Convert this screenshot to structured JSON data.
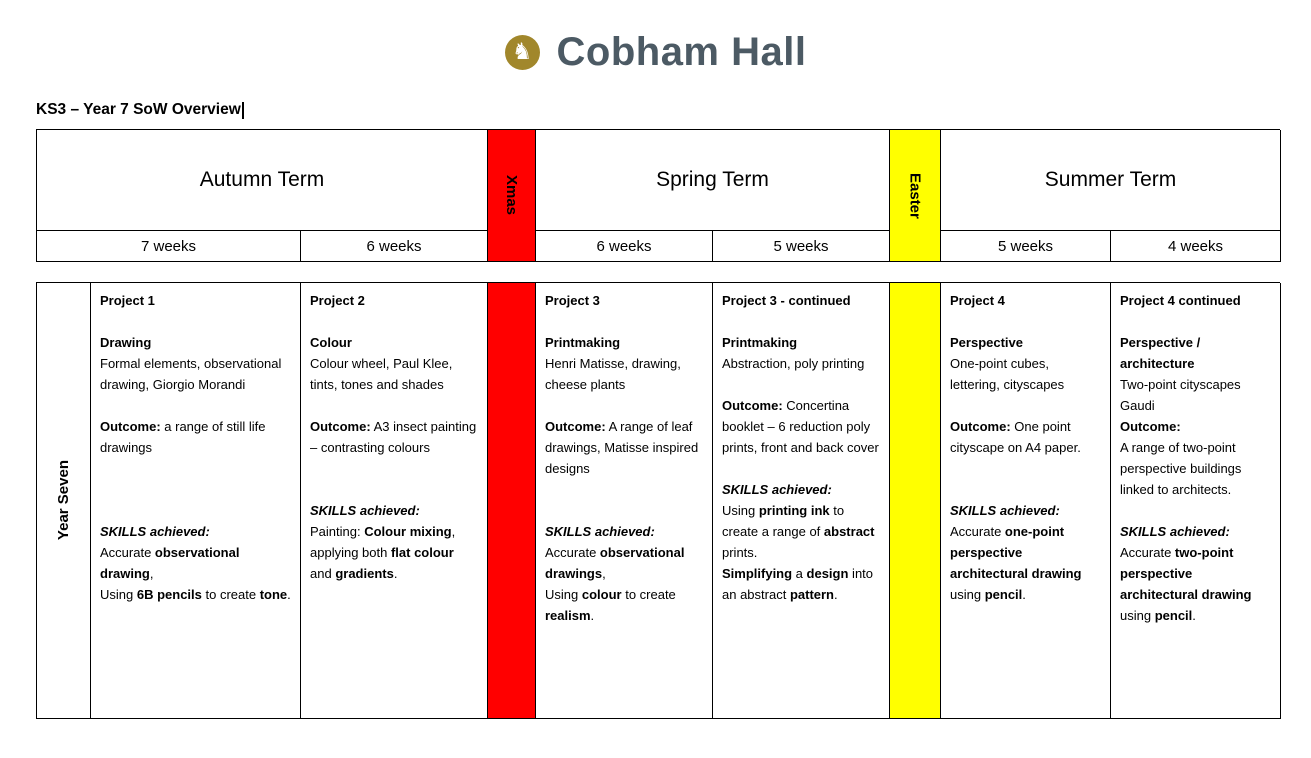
{
  "header": {
    "school_name": "Cobham Hall",
    "logo_icon": "horse-crest-icon",
    "logo_glyph": "♞"
  },
  "document": {
    "title": "KS3 – Year 7 SoW Overview"
  },
  "colors": {
    "xmas_red": "#FF0000",
    "easter_yellow": "#FFFF00",
    "logo_gold": "#A1872B",
    "school_name_gray": "#4C5A64"
  },
  "terms_table": {
    "headers": {
      "autumn": "Autumn Term",
      "xmas": "Xmas",
      "spring": "Spring Term",
      "easter": "Easter",
      "summer": "Summer Term"
    },
    "weeks": [
      "7 weeks",
      "6 weeks",
      "6 weeks",
      "5 weeks",
      "5 weeks",
      "4 weeks"
    ]
  },
  "projects_table": {
    "row_label": "Year Seven",
    "projects": [
      {
        "name": "project-1",
        "paragraphs": [
          [
            [
              "Project 1",
              "b"
            ]
          ],
          [],
          [
            [
              "Drawing",
              "b"
            ]
          ],
          [
            [
              "Formal elements, observational drawing, Giorgio Morandi",
              ""
            ]
          ],
          [],
          [
            [
              "Outcome:",
              "b"
            ],
            [
              " a range of still life drawings",
              ""
            ]
          ],
          [],
          [],
          [],
          [
            [
              "SKILLS achieved:",
              "bi"
            ]
          ],
          [
            [
              "Accurate ",
              ""
            ],
            [
              "observational drawing",
              "b"
            ],
            [
              ",",
              ""
            ]
          ],
          [
            [
              "Using ",
              ""
            ],
            [
              "6B pencils",
              "b"
            ],
            [
              " to create ",
              ""
            ],
            [
              "tone",
              "b"
            ],
            [
              ".",
              ""
            ]
          ]
        ]
      },
      {
        "name": "project-2",
        "paragraphs": [
          [
            [
              "Project 2",
              "b"
            ]
          ],
          [],
          [
            [
              "Colour",
              "b"
            ]
          ],
          [
            [
              "Colour wheel, Paul Klee, tints, tones and shades",
              ""
            ]
          ],
          [],
          [
            [
              "Outcome:",
              "b"
            ],
            [
              " A3 insect painting – contrasting colours",
              ""
            ]
          ],
          [],
          [],
          [
            [
              "SKILLS achieved:",
              "bi"
            ]
          ],
          [
            [
              "Painting: ",
              ""
            ],
            [
              "Colour mixing",
              "b"
            ],
            [
              ", applying both ",
              ""
            ],
            [
              "flat colour",
              "b"
            ],
            [
              " and ",
              ""
            ],
            [
              "gradients",
              "b"
            ],
            [
              ".",
              ""
            ]
          ]
        ]
      },
      {
        "name": "project-3",
        "paragraphs": [
          [
            [
              "Project 3",
              "b"
            ]
          ],
          [],
          [
            [
              "Printmaking",
              "b"
            ]
          ],
          [
            [
              "Henri Matisse, drawing, cheese plants",
              ""
            ]
          ],
          [],
          [
            [
              "Outcome:",
              "b"
            ],
            [
              " A range of leaf drawings, Matisse inspired designs",
              ""
            ]
          ],
          [],
          [],
          [
            [
              "SKILLS achieved:",
              "bi"
            ]
          ],
          [
            [
              "Accurate ",
              ""
            ],
            [
              "observational drawings",
              "b"
            ],
            [
              ",",
              ""
            ]
          ],
          [
            [
              "Using ",
              ""
            ],
            [
              "colour",
              "b"
            ],
            [
              " to create ",
              ""
            ],
            [
              "realism",
              "b"
            ],
            [
              ".",
              ""
            ]
          ]
        ]
      },
      {
        "name": "project-3-continued",
        "paragraphs": [
          [
            [
              "Project 3 - continued",
              "b"
            ]
          ],
          [],
          [
            [
              "Printmaking",
              "b"
            ]
          ],
          [
            [
              "Abstraction, poly printing",
              ""
            ]
          ],
          [],
          [
            [
              "Outcome:",
              "b"
            ],
            [
              " Concertina booklet – 6 reduction poly prints, front and back cover",
              ""
            ]
          ],
          [],
          [
            [
              "SKILLS achieved:",
              "bi"
            ]
          ],
          [
            [
              "Using ",
              ""
            ],
            [
              "printing ink",
              "b"
            ],
            [
              " to create a range of ",
              ""
            ],
            [
              "abstract",
              "b"
            ],
            [
              " prints.",
              ""
            ]
          ],
          [
            [
              "Simplifying",
              "b"
            ],
            [
              " a ",
              ""
            ],
            [
              "design",
              "b"
            ],
            [
              " into an abstract ",
              ""
            ],
            [
              "pattern",
              "b"
            ],
            [
              ".",
              ""
            ]
          ]
        ]
      },
      {
        "name": "project-4",
        "paragraphs": [
          [
            [
              "Project 4",
              "b"
            ]
          ],
          [],
          [
            [
              "Perspective",
              "b"
            ]
          ],
          [
            [
              "One-point cubes, lettering, cityscapes",
              ""
            ]
          ],
          [],
          [
            [
              "Outcome:",
              "b"
            ],
            [
              "  One point cityscape on A4 paper.",
              ""
            ]
          ],
          [],
          [],
          [
            [
              "SKILLS achieved:",
              "bi"
            ]
          ],
          [
            [
              "Accurate ",
              ""
            ],
            [
              "one-point perspective architectural drawing",
              "b"
            ],
            [
              " using ",
              ""
            ],
            [
              "pencil",
              "b"
            ],
            [
              ".",
              ""
            ]
          ]
        ]
      },
      {
        "name": "project-4-continued",
        "paragraphs": [
          [
            [
              "Project 4 continued",
              "b"
            ]
          ],
          [],
          [
            [
              "Perspective / architecture",
              "b"
            ]
          ],
          [
            [
              "Two-point cityscapes",
              ""
            ]
          ],
          [
            [
              "Gaudi",
              ""
            ]
          ],
          [
            [
              "Outcome:",
              "b"
            ]
          ],
          [
            [
              "A range of two-point perspective buildings linked to architects.",
              ""
            ]
          ],
          [],
          [
            [
              "SKILLS achieved:",
              "bi"
            ]
          ],
          [
            [
              "Accurate ",
              ""
            ],
            [
              "two-point perspective architectural drawing",
              "b"
            ],
            [
              " using ",
              ""
            ],
            [
              "pencil",
              "b"
            ],
            [
              ".",
              ""
            ]
          ]
        ]
      }
    ]
  }
}
